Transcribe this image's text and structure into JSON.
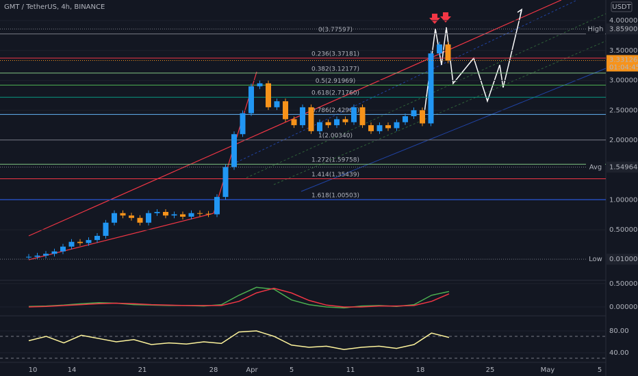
{
  "header": {
    "title": "GMT / TetherUS, 4h, BINANCE",
    "currency": "USDT"
  },
  "x_labels": [
    "10",
    "14",
    "21",
    "28",
    "Apr",
    "5",
    "11",
    "18",
    "25",
    "May",
    "5"
  ],
  "chart_data": [
    {
      "type": "candlestick",
      "values": [
        0.05,
        0.07,
        0.1,
        0.14,
        0.22,
        0.3,
        0.28,
        0.33,
        0.4,
        0.62,
        0.78,
        0.74,
        0.7,
        0.62,
        0.78,
        0.8,
        0.74,
        0.76,
        0.72,
        0.78,
        0.77,
        0.76,
        1.05,
        1.55,
        2.1,
        2.45,
        2.9,
        2.95,
        2.55,
        2.65,
        2.35,
        2.25,
        2.55,
        2.15,
        2.3,
        2.25,
        2.35,
        2.3,
        2.55,
        2.25,
        2.15,
        2.25,
        2.2,
        2.3,
        2.4,
        2.5,
        2.28,
        3.45,
        3.6,
        3.33
      ],
      "up_color": "#2196f3",
      "down_color": "#f7931a",
      "ylim": [
        -0.343,
        4.343
      ],
      "yticks": [
        {
          "value": 0.5,
          "label": "0.50000"
        },
        {
          "value": 1,
          "label": "1.00000"
        },
        {
          "value": 2,
          "label": "2.00000"
        },
        {
          "value": 2.5,
          "label": "2.50000"
        },
        {
          "value": 3,
          "label": "3.00000"
        },
        {
          "value": 3.5,
          "label": "3.50000"
        },
        {
          "value": 4,
          "label": "4.00000"
        }
      ],
      "grid": true,
      "fib_levels": [
        {
          "label": "0(3.77597)",
          "value": 3.77597,
          "color": "#787b86"
        },
        {
          "label": "0.236(3.37181)",
          "value": 3.37181,
          "color": "#f23645"
        },
        {
          "label": "0.382(3.12177)",
          "value": 3.12177,
          "color": "#81c784"
        },
        {
          "label": "0.5(2.91969)",
          "value": 2.91969,
          "color": "#4caf50"
        },
        {
          "label": "0.618(2.71760)",
          "value": 2.7176,
          "color": "#089981"
        },
        {
          "label": "0.786(2.42969)",
          "value": 2.42969,
          "color": "#64b5f6"
        },
        {
          "label": "1(2.00340)",
          "value": 2.0034,
          "color": "#787b86"
        },
        {
          "label": "1.272(1.59758)",
          "value": 1.59758,
          "color": "#81c784"
        },
        {
          "label": "1.414(1.35439)",
          "value": 1.35439,
          "color": "#f23645"
        },
        {
          "label": "1.618(1.00503)",
          "value": 1.00503,
          "color": "#2962ff"
        }
      ],
      "markers": [
        {
          "name": "High",
          "value": 3.859,
          "value_label": "3.85900"
        },
        {
          "name": "Avg",
          "value": 1.54964,
          "value_label": "1.54964"
        },
        {
          "name": "Low",
          "value": 0.01,
          "value_label": "0.01000"
        }
      ],
      "last_price": {
        "value": 3.33126,
        "value_label": "3.33126",
        "countdown": "01:04:45",
        "color": "#f7931a"
      }
    },
    {
      "type": "line",
      "series": [
        {
          "color": "#4caf50",
          "values": [
            0.01,
            0.02,
            0.04,
            0.07,
            0.09,
            0.08,
            0.05,
            0.04,
            0.03,
            0.03,
            0.02,
            0.05,
            0.25,
            0.42,
            0.38,
            0.15,
            0.05,
            0.0,
            -0.02,
            0.02,
            0.03,
            0.01,
            0.05,
            0.25,
            0.33
          ]
        },
        {
          "color": "#f23645",
          "values": [
            0.0,
            0.01,
            0.03,
            0.05,
            0.07,
            0.08,
            0.07,
            0.05,
            0.04,
            0.03,
            0.03,
            0.03,
            0.12,
            0.3,
            0.4,
            0.3,
            0.14,
            0.04,
            0.0,
            0.0,
            0.02,
            0.02,
            0.03,
            0.12,
            0.28
          ]
        }
      ],
      "ylim": [
        -0.19,
        0.57
      ],
      "yticks": [
        {
          "value": 0.5,
          "label": "0.50000"
        },
        {
          "value": 0,
          "label": "0.00000"
        }
      ]
    },
    {
      "type": "line",
      "series": [
        {
          "color": "#fff59d",
          "values": [
            62,
            70,
            58,
            72,
            66,
            60,
            64,
            55,
            58,
            56,
            60,
            57,
            78,
            80,
            70,
            54,
            50,
            52,
            46,
            50,
            52,
            48,
            55,
            76,
            68
          ]
        }
      ],
      "ylim": [
        -2.5,
        107.5
      ],
      "yticks": [
        {
          "value": 80,
          "label": "80.00"
        },
        {
          "value": 40,
          "label": "40.00"
        }
      ]
    }
  ]
}
